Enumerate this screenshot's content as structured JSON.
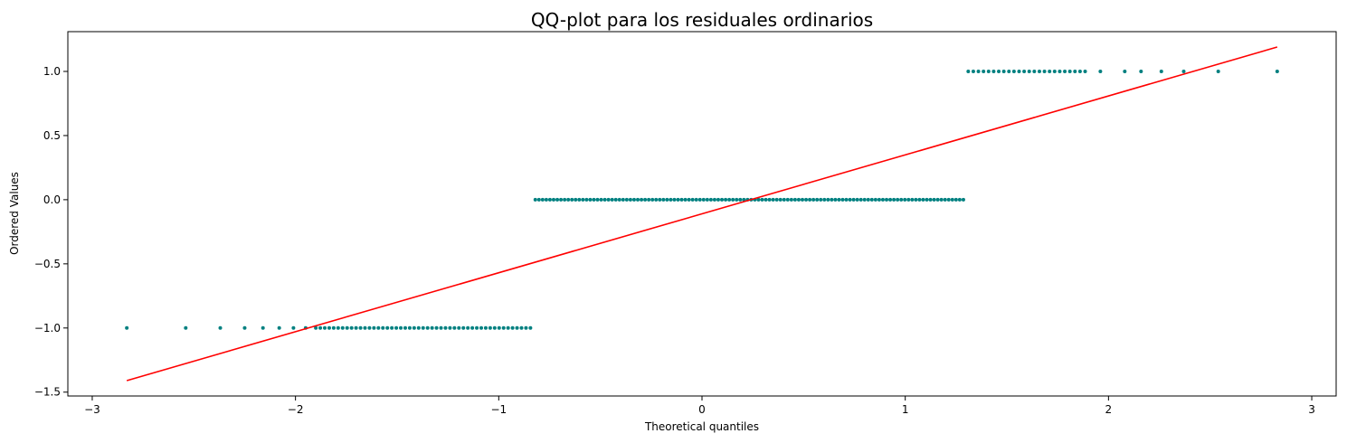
{
  "chart_data": {
    "type": "scatter",
    "title": "QQ-plot para los residuales ordinarios",
    "xlabel": "Theoretical quantiles",
    "ylabel": "Ordered Values",
    "xlim": [
      -3.12,
      3.12
    ],
    "ylim": [
      -1.53,
      1.31
    ],
    "x_ticks": [
      -3,
      -2,
      -1,
      0,
      1,
      2,
      3
    ],
    "x_tick_labels": [
      "−3",
      "−2",
      "−1",
      "0",
      "1",
      "2",
      "3"
    ],
    "y_ticks": [
      -1.5,
      -1.0,
      -0.5,
      0.0,
      0.5,
      1.0
    ],
    "y_tick_labels": [
      "−1.5",
      "−1.0",
      "−0.5",
      "0.0",
      "0.5",
      "1.0"
    ],
    "grid": false,
    "legend": "none",
    "colors": {
      "points": "#008080",
      "fit_line": "#ff0000"
    },
    "series": [
      {
        "kind": "points",
        "groups": [
          {
            "y": -1.0,
            "x_isolated": [
              -2.83,
              -2.54,
              -2.37,
              -2.25,
              -2.16,
              -2.08,
              -2.01,
              -1.95
            ],
            "x_dense_range": [
              -1.9,
              -0.83
            ],
            "x_dense_step": 0.022
          },
          {
            "y": 0.0,
            "x_dense_range": [
              -0.82,
              1.29
            ],
            "x_dense_step": 0.018
          },
          {
            "y": 1.0,
            "x_isolated": [
              1.96,
              2.08,
              2.16,
              2.26,
              2.37,
              2.54,
              2.83
            ],
            "x_dense_range": [
              1.31,
              1.9
            ],
            "x_dense_step": 0.025
          }
        ]
      },
      {
        "kind": "line",
        "x": [
          -2.83,
          2.83
        ],
        "y": [
          -1.41,
          1.19
        ]
      }
    ]
  }
}
